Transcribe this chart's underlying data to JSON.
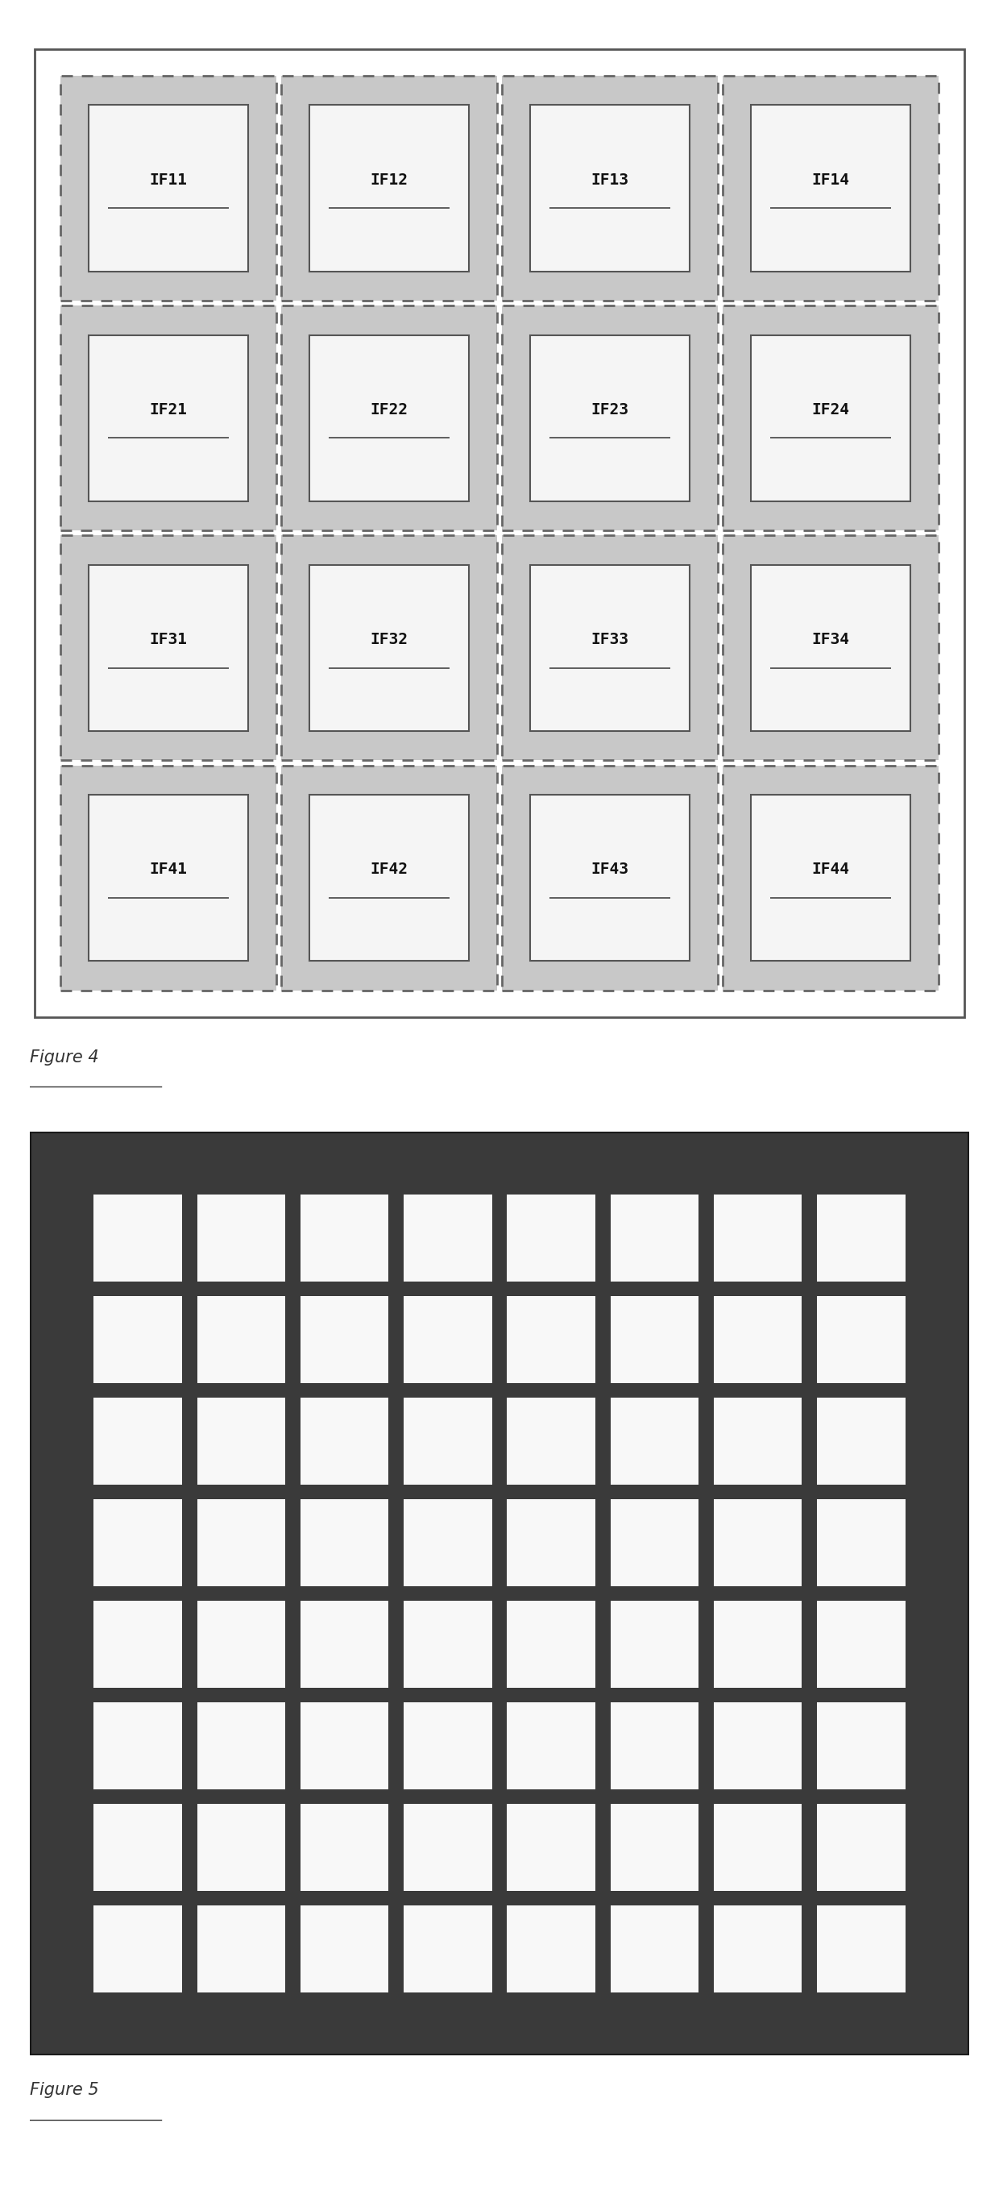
{
  "fig4_title": "Figure 4",
  "fig5_title": "Figure 5",
  "fig4_labels": [
    [
      "IF11",
      "IF12",
      "IF13",
      "IF14"
    ],
    [
      "IF21",
      "IF22",
      "IF23",
      "IF24"
    ],
    [
      "IF31",
      "IF32",
      "IF33",
      "IF34"
    ],
    [
      "IF41",
      "IF42",
      "IF43",
      "IF44"
    ]
  ],
  "fig4_rows": 4,
  "fig4_cols": 4,
  "fig5_grid_rows": 8,
  "fig5_grid_cols": 8,
  "page_bg": "#ffffff",
  "fig4_outer_bg": "#e0e0e0",
  "fig4_outer_border": "#555555",
  "fig4_cell_dashed_bg": "#c8c8c8",
  "fig4_cell_dashed_color": "#666666",
  "fig4_inner_bg": "#f5f5f5",
  "fig4_inner_border": "#555555",
  "fig4_text_color": "#111111",
  "fig4_underline_color": "#444444",
  "fig5_bg": "#3a3a3a",
  "fig5_cell_color": "#f8f8f8",
  "fig5_border_color": "#1a1a1a",
  "caption_color": "#333333",
  "caption_fontsize": 15
}
